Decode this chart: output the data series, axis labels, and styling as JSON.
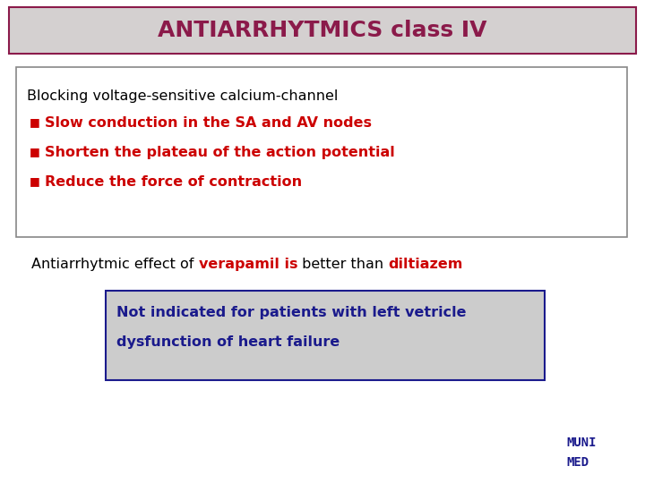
{
  "title": "ANTIARRHYTMICS class IV",
  "title_color": "#8B1A4A",
  "title_bg_color": "#D4D0D0",
  "title_border_color": "#8B1A4A",
  "bg_color": "#FFFFFF",
  "black_line": "Blocking voltage-sensitive calcium-channel",
  "bullet_items": [
    "Slow conduction in the SA and AV nodes",
    "Shorten the plateau of the action potential",
    "Reduce the force of contraction"
  ],
  "bullet_color": "#CC0000",
  "box1_border": "#888888",
  "antiarrhytmic_prefix": "Antiarrhytmic effect of ",
  "verapamil_text": "verapamil is",
  "verapamil_color": "#CC0000",
  "better_than_text": " better than ",
  "diltiazem_text": "diltiazem",
  "diltiazem_color": "#CC0000",
  "warning_box_bg": "#CCCCCC",
  "warning_box_border": "#1A1A8C",
  "warning_line1": "Not indicated for patients with left vetricle",
  "warning_line2": "dysfunction of heart failure",
  "warning_text_color": "#1A1A8C",
  "muni_med_color": "#1A1A8C",
  "muni_text": "MUNI",
  "med_text": "MED",
  "fig_width": 7.2,
  "fig_height": 5.4,
  "dpi": 100
}
